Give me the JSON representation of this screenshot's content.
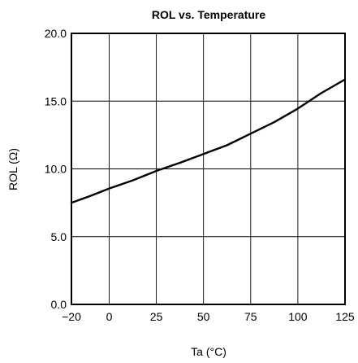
{
  "chart_data": {
    "type": "line",
    "title": "ROL vs. Temperature",
    "xlabel": "Ta (°C)",
    "ylabel": "ROL (Ω)",
    "xlim": [
      -20,
      125
    ],
    "ylim": [
      0,
      20
    ],
    "x_ticks": [
      -20,
      0,
      25,
      50,
      75,
      100,
      125
    ],
    "x_tick_labels": [
      "−20",
      "0",
      "25",
      "50",
      "75",
      "100",
      "125"
    ],
    "y_ticks": [
      0,
      5,
      10,
      15,
      20
    ],
    "y_tick_labels": [
      "0.0",
      "5.0",
      "10.0",
      "15.0",
      "20.0"
    ],
    "grid": true,
    "series": [
      {
        "x": [
          -20,
          -10,
          0,
          12.5,
          25,
          37.5,
          50,
          62.5,
          75,
          87.5,
          100,
          112.5,
          125
        ],
        "y": [
          7.5,
          8.0,
          8.55,
          9.15,
          9.85,
          10.45,
          11.1,
          11.75,
          12.6,
          13.45,
          14.45,
          15.6,
          16.6
        ]
      }
    ],
    "colors": {
      "line": "#000000",
      "grid": "#000000",
      "frame": "#000000"
    }
  }
}
